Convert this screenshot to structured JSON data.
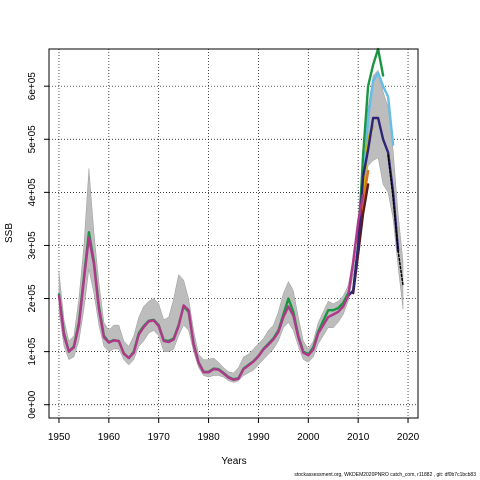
{
  "chart_data": {
    "type": "line",
    "xlabel": "Years",
    "ylabel": "SSB",
    "xlim": [
      1948,
      2022
    ],
    "ylim": [
      -25000,
      670000
    ],
    "x_ticks": [
      1950,
      1960,
      1970,
      1980,
      1990,
      2000,
      2010,
      2020
    ],
    "y_ticks": [
      0,
      100000,
      200000,
      300000,
      400000,
      500000,
      600000
    ],
    "y_tick_labels": [
      "0e+00",
      "1e+05",
      "2e+05",
      "3e+05",
      "4e+05",
      "5e+05",
      "6e+05"
    ],
    "grid": true,
    "grid_style": "dotted",
    "band_color": "#bdbdbd",
    "band": {
      "x": [
        1950,
        1951,
        1952,
        1953,
        1954,
        1955,
        1956,
        1957,
        1958,
        1959,
        1960,
        1961,
        1962,
        1963,
        1964,
        1965,
        1966,
        1967,
        1968,
        1969,
        1970,
        1971,
        1972,
        1973,
        1974,
        1975,
        1976,
        1977,
        1978,
        1979,
        1980,
        1981,
        1982,
        1983,
        1984,
        1985,
        1986,
        1987,
        1988,
        1989,
        1990,
        1991,
        1992,
        1993,
        1994,
        1995,
        1996,
        1997,
        1998,
        1999,
        2000,
        2001,
        2002,
        2003,
        2004,
        2005,
        2006,
        2007,
        2008,
        2009,
        2010,
        2011,
        2012,
        2013,
        2014,
        2015,
        2016,
        2017,
        2018,
        2019
      ],
      "lower": [
        175000,
        110000,
        85000,
        90000,
        120000,
        180000,
        255000,
        210000,
        150000,
        110000,
        100000,
        105000,
        105000,
        85000,
        75000,
        85000,
        110000,
        120000,
        135000,
        140000,
        130000,
        100000,
        100000,
        105000,
        130000,
        150000,
        140000,
        100000,
        70000,
        55000,
        52000,
        55000,
        55000,
        52000,
        45000,
        42000,
        45000,
        55000,
        60000,
        65000,
        75000,
        85000,
        95000,
        105000,
        120000,
        145000,
        155000,
        140000,
        110000,
        85000,
        80000,
        90000,
        115000,
        130000,
        145000,
        145000,
        155000,
        170000,
        195000,
        245000,
        330000,
        395000,
        450000,
        460000,
        465000,
        415000,
        400000,
        350000,
        260000,
        180000
      ],
      "upper": [
        250000,
        160000,
        120000,
        130000,
        200000,
        300000,
        445000,
        325000,
        230000,
        155000,
        140000,
        150000,
        150000,
        120000,
        110000,
        130000,
        165000,
        185000,
        195000,
        200000,
        190000,
        160000,
        165000,
        200000,
        245000,
        235000,
        200000,
        140000,
        95000,
        85000,
        85000,
        88000,
        80000,
        70000,
        62000,
        60000,
        70000,
        90000,
        95000,
        105000,
        115000,
        125000,
        140000,
        150000,
        175000,
        210000,
        232000,
        215000,
        165000,
        120000,
        105000,
        120000,
        155000,
        175000,
        195000,
        190000,
        195000,
        205000,
        225000,
        275000,
        355000,
        470000,
        560000,
        620000,
        630000,
        590000,
        560000,
        480000,
        360000,
        270000
      ]
    },
    "series": [
      {
        "color": "#1a9641",
        "x": [
          2009,
          2010,
          2011,
          2012,
          2013,
          2014,
          2015
        ],
        "values": [
          215000,
          300000,
          470000,
          600000,
          640000,
          670000,
          620000
        ]
      },
      {
        "color": "#66bde6",
        "x": [
          2010,
          2011,
          2012,
          2013,
          2014,
          2015,
          2016,
          2017
        ],
        "values": [
          290000,
          400000,
          540000,
          610000,
          625000,
          600000,
          580000,
          490000
        ]
      },
      {
        "color": "#c8b400",
        "x": [
          2009,
          2010,
          2011,
          2012,
          2013
        ],
        "values": [
          215000,
          290000,
          400000,
          500000,
          525000
        ]
      },
      {
        "color": "#e07020",
        "x": [
          2010,
          2011,
          2012
        ],
        "values": [
          285000,
          380000,
          440000
        ]
      },
      {
        "color": "#5a1a1a",
        "x": [
          2009,
          2010,
          2011,
          2012
        ],
        "values": [
          210000,
          285000,
          360000,
          415000
        ]
      },
      {
        "color": "#2f2577",
        "x": [
          2008,
          2009,
          2010,
          2011,
          2012,
          2013,
          2014,
          2015,
          2016,
          2017,
          2018
        ],
        "values": [
          205000,
          215000,
          300000,
          430000,
          480000,
          540000,
          540000,
          500000,
          475000,
          400000,
          290000
        ]
      },
      {
        "color": "#000000",
        "dashed": true,
        "x": [
          2016,
          2017,
          2018,
          2019
        ],
        "values": [
          470000,
          390000,
          290000,
          225000
        ]
      },
      {
        "color": "#1a9641",
        "x": [
          1950,
          1951,
          1952,
          1953,
          1954,
          1955,
          1956,
          1957,
          1958,
          1959,
          1960,
          1961,
          1962,
          1963,
          1964,
          1965,
          1966,
          1967,
          1968,
          1969,
          1970,
          1971,
          1972,
          1973,
          1974,
          1975,
          1976,
          1977,
          1978,
          1979,
          1980,
          1981,
          1982,
          1983,
          1984,
          1985,
          1986,
          1987,
          1988,
          1989,
          1990,
          1991,
          1992,
          1993,
          1994,
          1995,
          1996,
          1997,
          1998,
          1999,
          2000,
          2001,
          2002,
          2003,
          2004,
          2005,
          2006,
          2007,
          2008
        ],
        "values": [
          208000,
          135000,
          100000,
          110000,
          155000,
          240000,
          325000,
          270000,
          185000,
          130000,
          118000,
          122000,
          120000,
          97000,
          88000,
          100000,
          135000,
          148000,
          158000,
          160000,
          150000,
          122000,
          120000,
          125000,
          150000,
          185000,
          175000,
          115000,
          80000,
          62000,
          62000,
          68000,
          67000,
          60000,
          52000,
          48000,
          50000,
          68000,
          75000,
          82000,
          92000,
          105000,
          115000,
          125000,
          140000,
          170000,
          200000,
          175000,
          130000,
          100000,
          95000,
          108000,
          138000,
          158000,
          178000,
          178000,
          182000,
          192000,
          210000
        ]
      },
      {
        "color": "#b0388b",
        "x": [
          1950,
          1951,
          1952,
          1953,
          1954,
          1955,
          1956,
          1957,
          1958,
          1959,
          1960,
          1961,
          1962,
          1963,
          1964,
          1965,
          1966,
          1967,
          1968,
          1969,
          1970,
          1971,
          1972,
          1973,
          1974,
          1975,
          1976,
          1977,
          1978,
          1979,
          1980,
          1981,
          1982,
          1983,
          1984,
          1985,
          1986,
          1987,
          1988,
          1989,
          1990,
          1991,
          1992,
          1993,
          1994,
          1995,
          1996,
          1997,
          1998,
          1999,
          2000,
          2001,
          2002,
          2003,
          2004,
          2005,
          2006,
          2007,
          2008,
          2009,
          2010,
          2011
        ],
        "values": [
          205000,
          130000,
          100000,
          108000,
          150000,
          235000,
          315000,
          265000,
          180000,
          127000,
          117000,
          121000,
          120000,
          96000,
          88000,
          98000,
          132000,
          146000,
          157000,
          159000,
          148000,
          120000,
          118000,
          123000,
          148000,
          187000,
          178000,
          113000,
          79000,
          61000,
          61000,
          67000,
          66000,
          59000,
          51000,
          47000,
          49000,
          67000,
          74000,
          81000,
          91000,
          104000,
          113000,
          123000,
          137000,
          165000,
          185000,
          168000,
          127000,
          98000,
          93000,
          104000,
          135000,
          150000,
          165000,
          170000,
          175000,
          185000,
          205000,
          270000,
          345000,
          395000
        ]
      }
    ]
  },
  "footer_text": "stockassessment.org, WKDEM2020PNRO catch_com, r11882 , git: df0b7c1bcb83"
}
